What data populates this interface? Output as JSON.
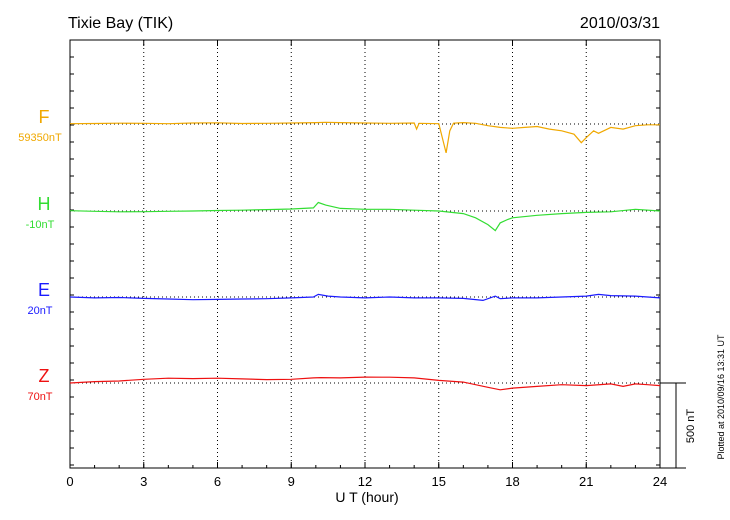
{
  "chart_data": {
    "type": "line",
    "title": "Tixie Bay (TIK)",
    "date": "2010/03/31",
    "xlabel": "U T (hour)",
    "xlim": [
      0,
      24
    ],
    "xticks": [
      "0",
      "3",
      "6",
      "9",
      "12",
      "15",
      "18",
      "21",
      "24"
    ],
    "scale_bar_label": "500 nT",
    "scale_bar_nT": 500,
    "plotted_note": "Plotted at 2010/09/16 13:31 UT",
    "grid": true,
    "series": [
      {
        "name": "F",
        "baseline_label": "59350nT",
        "color": "#f0a800",
        "points": [
          [
            0,
            2
          ],
          [
            1,
            3
          ],
          [
            2,
            5
          ],
          [
            3,
            4
          ],
          [
            4,
            2
          ],
          [
            5,
            6
          ],
          [
            6,
            7
          ],
          [
            7,
            3
          ],
          [
            8,
            4
          ],
          [
            9,
            6
          ],
          [
            10,
            8
          ],
          [
            10.4,
            10
          ],
          [
            11,
            8
          ],
          [
            12,
            6
          ],
          [
            13,
            4
          ],
          [
            14,
            6
          ],
          [
            14.1,
            -30
          ],
          [
            14.2,
            4
          ],
          [
            15,
            2
          ],
          [
            15.3,
            -170
          ],
          [
            15.45,
            -40
          ],
          [
            15.6,
            5
          ],
          [
            16,
            8
          ],
          [
            16.5,
            4
          ],
          [
            17,
            -10
          ],
          [
            17.5,
            -20
          ],
          [
            18,
            -25
          ],
          [
            18.5,
            -20
          ],
          [
            19,
            -15
          ],
          [
            19.5,
            -30
          ],
          [
            20,
            -40
          ],
          [
            20.5,
            -60
          ],
          [
            20.8,
            -110
          ],
          [
            21,
            -80
          ],
          [
            21.3,
            -40
          ],
          [
            21.5,
            -55
          ],
          [
            22,
            -20
          ],
          [
            22.5,
            -30
          ],
          [
            23,
            -10
          ],
          [
            23.5,
            -5
          ],
          [
            24,
            -5
          ]
        ]
      },
      {
        "name": "H",
        "baseline_label": "-10nT",
        "color": "#33dd33",
        "points": [
          [
            0,
            2
          ],
          [
            1,
            -2
          ],
          [
            2,
            -5
          ],
          [
            3,
            -4
          ],
          [
            4,
            -2
          ],
          [
            5,
            0
          ],
          [
            6,
            3
          ],
          [
            7,
            5
          ],
          [
            8,
            8
          ],
          [
            9,
            12
          ],
          [
            9.9,
            18
          ],
          [
            10.1,
            50
          ],
          [
            10.4,
            35
          ],
          [
            11,
            15
          ],
          [
            12,
            10
          ],
          [
            13,
            10
          ],
          [
            14,
            5
          ],
          [
            15,
            0
          ],
          [
            16,
            -15
          ],
          [
            16.5,
            -40
          ],
          [
            17,
            -80
          ],
          [
            17.3,
            -115
          ],
          [
            17.5,
            -70
          ],
          [
            17.8,
            -50
          ],
          [
            18,
            -40
          ],
          [
            19,
            -25
          ],
          [
            20,
            -15
          ],
          [
            21,
            -8
          ],
          [
            22,
            -5
          ],
          [
            23,
            10
          ],
          [
            24,
            0
          ]
        ]
      },
      {
        "name": "E",
        "baseline_label": "20nT",
        "color": "#1a1aff",
        "points": [
          [
            0,
            0
          ],
          [
            1,
            -5
          ],
          [
            2,
            -3
          ],
          [
            3,
            -8
          ],
          [
            4,
            -12
          ],
          [
            5,
            -16
          ],
          [
            6,
            -14
          ],
          [
            7,
            -12
          ],
          [
            8,
            -10
          ],
          [
            9,
            -5
          ],
          [
            9.9,
            0
          ],
          [
            10.1,
            15
          ],
          [
            10.5,
            5
          ],
          [
            11,
            0
          ],
          [
            12,
            -5
          ],
          [
            13,
            0
          ],
          [
            14,
            -5
          ],
          [
            15,
            -5
          ],
          [
            16,
            -8
          ],
          [
            16.8,
            -20
          ],
          [
            17.3,
            5
          ],
          [
            17.5,
            -10
          ],
          [
            18,
            -5
          ],
          [
            19,
            -5
          ],
          [
            20,
            0
          ],
          [
            21,
            5
          ],
          [
            21.5,
            15
          ],
          [
            22,
            8
          ],
          [
            23,
            5
          ],
          [
            24,
            -5
          ]
        ]
      },
      {
        "name": "Z",
        "baseline_label": "70nT",
        "color": "#ee1111",
        "points": [
          [
            0,
            0
          ],
          [
            1,
            8
          ],
          [
            2,
            12
          ],
          [
            3,
            22
          ],
          [
            4,
            28
          ],
          [
            5,
            26
          ],
          [
            6,
            28
          ],
          [
            7,
            24
          ],
          [
            8,
            20
          ],
          [
            9,
            22
          ],
          [
            9.9,
            30
          ],
          [
            10.2,
            32
          ],
          [
            11,
            30
          ],
          [
            12,
            35
          ],
          [
            13,
            34
          ],
          [
            14,
            30
          ],
          [
            15,
            15
          ],
          [
            16,
            5
          ],
          [
            17,
            -25
          ],
          [
            17.5,
            -40
          ],
          [
            18,
            -30
          ],
          [
            19,
            -20
          ],
          [
            20,
            -10
          ],
          [
            21,
            -15
          ],
          [
            22,
            -5
          ],
          [
            22.5,
            -20
          ],
          [
            23,
            -5
          ],
          [
            23.5,
            -10
          ],
          [
            24,
            -15
          ]
        ]
      }
    ]
  }
}
